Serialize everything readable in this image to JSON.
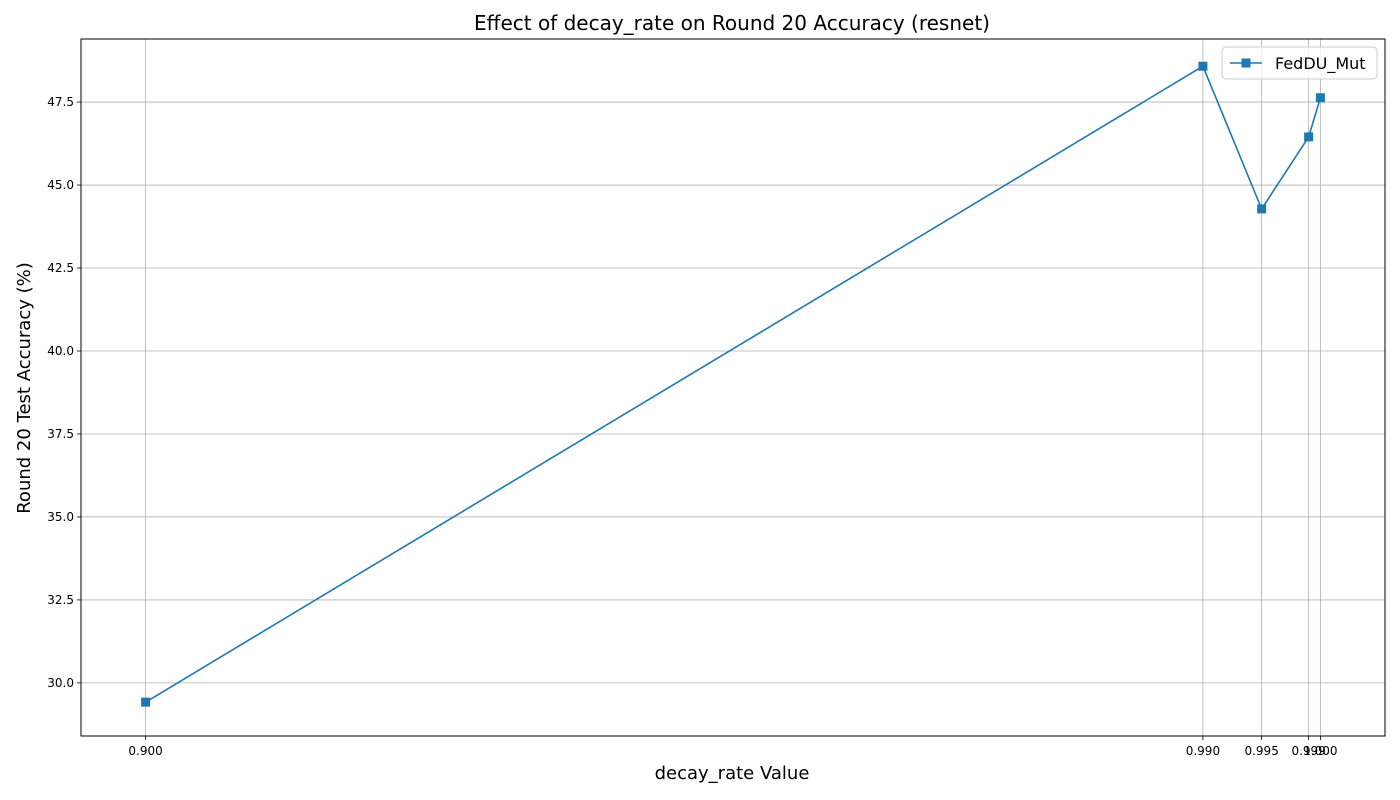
{
  "chart_data": {
    "type": "line",
    "title": "Effect of decay_rate on Round 20 Accuracy (resnet)",
    "xlabel": "decay_rate Value",
    "ylabel": "Round 20 Test Accuracy (%)",
    "xlim": [
      0.8945,
      1.0055
    ],
    "ylim": [
      28.4,
      49.4
    ],
    "x_ticks": [
      0.9,
      0.99,
      0.995,
      0.999,
      1.0
    ],
    "x_tick_labels": [
      "0.900",
      "0.990",
      "0.995",
      "0.999",
      "1.000"
    ],
    "y_ticks": [
      30.0,
      32.5,
      35.0,
      37.5,
      40.0,
      42.5,
      45.0,
      47.5
    ],
    "y_tick_labels": [
      "30.0",
      "32.5",
      "35.0",
      "37.5",
      "40.0",
      "42.5",
      "45.0",
      "47.5"
    ],
    "grid": true,
    "legend_position": "top-right",
    "colors": {
      "series": "#1f77b4",
      "grid": "#b0b0b0",
      "axis": "#000000"
    },
    "series": [
      {
        "name": "FedDU_Mut",
        "marker": "square",
        "x": [
          0.9,
          0.99,
          0.995,
          0.999,
          1.0
        ],
        "y": [
          29.42,
          48.58,
          44.28,
          46.45,
          47.63
        ]
      }
    ]
  }
}
